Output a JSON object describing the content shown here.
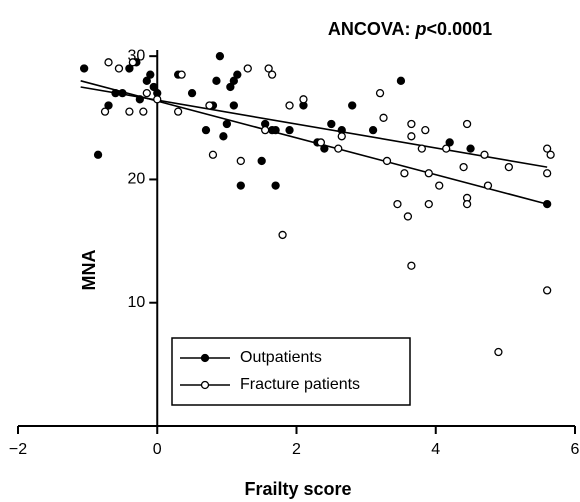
{
  "chart_data": {
    "type": "scatter",
    "title_parts": [
      "ANCOVA: ",
      "p",
      "<0.0001"
    ],
    "x_label": "Frailty score",
    "y_label": "MNA",
    "xlim": [
      -2,
      6
    ],
    "ylim": [
      0,
      30.5
    ],
    "xticks": [
      {
        "value": -2,
        "label": "−2"
      },
      0,
      2,
      4,
      6
    ],
    "yticks": [
      10,
      20,
      30
    ],
    "legend": "lower left",
    "series": [
      {
        "name": "Outpatients",
        "color": "#000000",
        "marker": "filled",
        "x": [
          -1.05,
          -0.85,
          -0.7,
          -0.6,
          -0.5,
          -0.4,
          -0.3,
          -0.25,
          -0.15,
          -0.1,
          -0.05,
          0,
          0.3,
          0.5,
          0.7,
          0.8,
          0.85,
          0.9,
          0.95,
          1.0,
          1.05,
          1.1,
          1.1,
          1.15,
          1.2,
          1.5,
          1.55,
          1.65,
          1.7,
          1.7,
          1.9,
          2.1,
          2.3,
          2.4,
          2.5,
          2.65,
          2.8,
          3.1,
          3.5,
          4.2,
          4.5,
          5.6
        ],
        "values": [
          29,
          22,
          26,
          27,
          27,
          29,
          29.5,
          26.5,
          28,
          28.5,
          27.5,
          27,
          28.5,
          27,
          24,
          26,
          28,
          30,
          23.5,
          24.5,
          27.5,
          28,
          26,
          28.5,
          19.5,
          21.5,
          24.5,
          24,
          19.5,
          24,
          24,
          26,
          23,
          22.5,
          24.5,
          24,
          26,
          24,
          28,
          23,
          22.5,
          18
        ],
        "fit": {
          "x": [
            -1.1,
            5.6
          ],
          "y": [
            28,
            18
          ]
        }
      },
      {
        "name": "Fracture patients",
        "color": "#000000",
        "marker": "open",
        "x": [
          -0.75,
          -0.7,
          -0.55,
          -0.4,
          -0.35,
          -0.2,
          -0.15,
          0,
          0.3,
          0.35,
          0.75,
          0.8,
          1.2,
          1.3,
          1.6,
          1.65,
          1.55,
          1.8,
          1.9,
          2.1,
          2.35,
          2.6,
          2.65,
          3.2,
          3.25,
          3.3,
          3.45,
          3.55,
          3.6,
          3.65,
          3.65,
          3.65,
          3.8,
          3.9,
          3.9,
          3.85,
          4.05,
          4.15,
          4.4,
          4.45,
          4.45,
          4.45,
          4.7,
          4.75,
          4.9,
          5.05,
          5.6,
          5.65,
          5.6,
          5.6
        ],
        "values": [
          25.5,
          29.5,
          29,
          25.5,
          29.5,
          25.5,
          27,
          26.5,
          25.5,
          28.5,
          26,
          22,
          21.5,
          29,
          29,
          28.5,
          24,
          15.5,
          26,
          26.5,
          23,
          22.5,
          23.5,
          27,
          25,
          21.5,
          18,
          20.5,
          17,
          13,
          24.5,
          23.5,
          22.5,
          18,
          20.5,
          24,
          19.5,
          22.5,
          21,
          24.5,
          18.5,
          18,
          22,
          19.5,
          6,
          21,
          22.5,
          22,
          20.5,
          11
        ],
        "fit": {
          "x": [
            -1.1,
            5.6
          ],
          "y": [
            27.5,
            21
          ]
        }
      }
    ]
  }
}
